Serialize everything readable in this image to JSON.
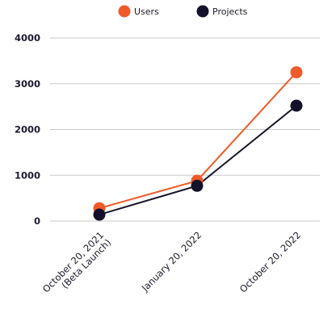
{
  "chart_data": {
    "type": "line",
    "categories": [
      [
        "October 20, 2021",
        "(Beta Launch)"
      ],
      [
        "January 20, 2022"
      ],
      [
        "October 20, 2022"
      ]
    ],
    "ylim": [
      0,
      4000
    ],
    "yticks": [
      0,
      1000,
      2000,
      3000,
      4000
    ],
    "grid": true,
    "legend_position": "top-center",
    "series": [
      {
        "name": "Users",
        "color": "#f05a28",
        "values": [
          280,
          880,
          3250
        ]
      },
      {
        "name": "Projects",
        "color": "#14122a",
        "values": [
          140,
          770,
          2520
        ]
      }
    ]
  }
}
